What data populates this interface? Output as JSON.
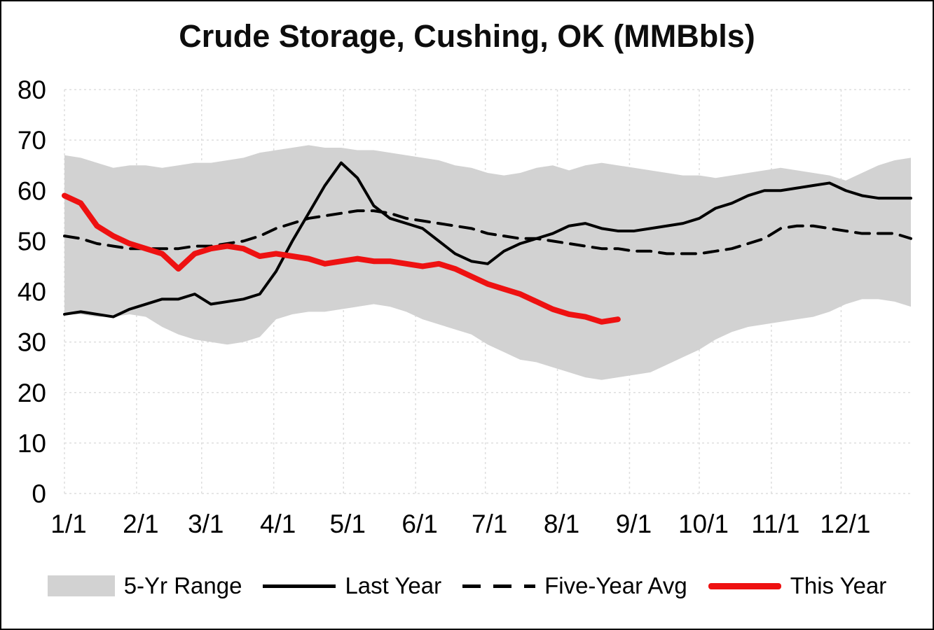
{
  "chart_data": {
    "type": "line",
    "title": "Crude Storage, Cushing, OK (MMBbls)",
    "xlabel": "",
    "ylabel": "",
    "ylim": [
      0,
      80
    ],
    "y_ticks": [
      0,
      10,
      20,
      30,
      40,
      50,
      60,
      70,
      80
    ],
    "x_unit": "day-of-year",
    "x_range": [
      1,
      365
    ],
    "weekly_step_days": 7,
    "grid": {
      "color": "#dedede",
      "dash": "3 4",
      "horizontal": true,
      "vertical": true
    },
    "x_ticks": [
      {
        "label": "1/1",
        "day": 1
      },
      {
        "label": "2/1",
        "day": 32
      },
      {
        "label": "3/1",
        "day": 60
      },
      {
        "label": "4/1",
        "day": 91
      },
      {
        "label": "5/1",
        "day": 121
      },
      {
        "label": "6/1",
        "day": 152
      },
      {
        "label": "7/1",
        "day": 182
      },
      {
        "label": "8/1",
        "day": 213
      },
      {
        "label": "9/1",
        "day": 244
      },
      {
        "label": "10/1",
        "day": 274
      },
      {
        "label": "11/1",
        "day": 305
      },
      {
        "label": "12/1",
        "day": 335
      }
    ],
    "band": {
      "name": "5-Yr Range",
      "color": "#d2d2d2",
      "upper": [
        67,
        66.5,
        65.5,
        64.5,
        65,
        65,
        64.5,
        65,
        65.5,
        65.5,
        66,
        66.5,
        67.5,
        68,
        68.5,
        69,
        68.5,
        68.5,
        68,
        68,
        67.5,
        67,
        66.5,
        66,
        65,
        64.5,
        63.5,
        63,
        63.5,
        64.5,
        65,
        64,
        65,
        65.5,
        65,
        64.5,
        64,
        63.5,
        63,
        63,
        62.5,
        63,
        63.5,
        64,
        64.5,
        64,
        63.5,
        63,
        62,
        63.5,
        65,
        66,
        66.5
      ],
      "lower": [
        35.5,
        35.5,
        35,
        35,
        35.5,
        35,
        33,
        31.5,
        30.5,
        30,
        29.5,
        30,
        31,
        34.5,
        35.5,
        36,
        36,
        36.5,
        37,
        37.5,
        37,
        36,
        34.5,
        33.5,
        32.5,
        31.5,
        29.5,
        28,
        26.5,
        26,
        25,
        24,
        23,
        22.5,
        23,
        23.5,
        24,
        25.5,
        27,
        28.5,
        30.5,
        32,
        33,
        33.5,
        34,
        34.5,
        35,
        36,
        37.5,
        38.5,
        38.5,
        38,
        37
      ]
    },
    "series": [
      {
        "name": "Last Year",
        "color": "#000000",
        "dash": "none",
        "width": 4,
        "values": [
          35.5,
          36,
          35.5,
          35,
          36.5,
          37.5,
          38.5,
          38.5,
          39.5,
          37.5,
          38,
          38.5,
          39.5,
          44,
          50,
          55.5,
          61,
          65.5,
          62.5,
          57,
          54.5,
          53.5,
          52.5,
          50,
          47.5,
          46,
          45.5,
          48,
          49.5,
          50.5,
          51.5,
          53,
          53.5,
          52.5,
          52,
          52,
          52.5,
          53,
          53.5,
          54.5,
          56.5,
          57.5,
          59,
          60,
          60,
          60.5,
          61,
          61.5,
          60,
          59,
          58.5,
          58.5,
          58.5
        ]
      },
      {
        "name": "Five-Year Avg",
        "color": "#000000",
        "dash": "20 12",
        "width": 4,
        "values": [
          51,
          50.5,
          49.5,
          49,
          48.5,
          48.5,
          48.5,
          48.5,
          49,
          49,
          49.5,
          50,
          51,
          52.5,
          53.5,
          54.5,
          55,
          55.5,
          56,
          56,
          55.5,
          54.5,
          54,
          53.5,
          53,
          52.5,
          51.5,
          51,
          50.5,
          50.5,
          50,
          49.5,
          49,
          48.5,
          48.5,
          48,
          48,
          47.5,
          47.5,
          47.5,
          48,
          48.5,
          49.5,
          50.5,
          52.5,
          53,
          53,
          52.5,
          52,
          51.5,
          51.5,
          51.5,
          50.5
        ]
      },
      {
        "name": "This Year",
        "color": "#ee1111",
        "dash": "none",
        "width": 8,
        "values": [
          59,
          57.5,
          53,
          51,
          49.5,
          48.5,
          47.5,
          44.5,
          47.5,
          48.5,
          49,
          48.5,
          47,
          47.5,
          47,
          46.5,
          45.5,
          46,
          46.5,
          46,
          46,
          45.5,
          45,
          45.5,
          44.5,
          43,
          41.5,
          40.5,
          39.5,
          38,
          36.5,
          35.5,
          35,
          34,
          34.5
        ]
      }
    ],
    "legend": [
      {
        "label": "5-Yr Range",
        "swatch": "band"
      },
      {
        "label": "Last Year",
        "swatch": "solid"
      },
      {
        "label": "Five-Year Avg",
        "swatch": "dashed"
      },
      {
        "label": "This Year",
        "swatch": "red"
      }
    ]
  }
}
